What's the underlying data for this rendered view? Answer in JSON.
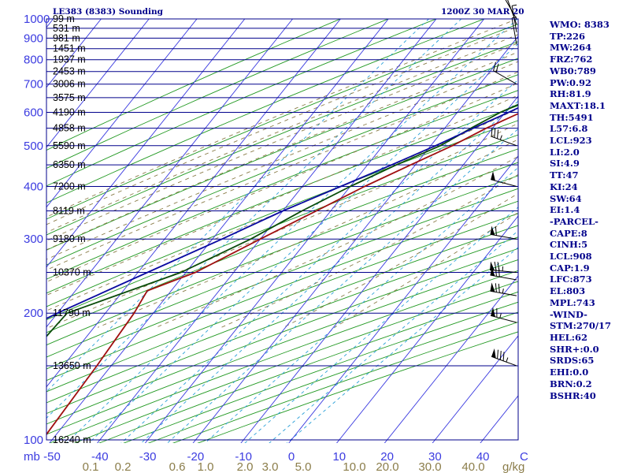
{
  "header": {
    "title": "LE383 (8383) Sounding",
    "time": "1200Z 30 MAR 20"
  },
  "indices": [
    "WMO: 8383",
    "TP:226",
    "MW:264",
    "FRZ:762",
    "WB0:789",
    "PW:0.92",
    "RH:81.9",
    "MAXT:18.1",
    "TH:5491",
    "L57:6.8",
    "LCL:923",
    "LI:2.0",
    "SI:4.9",
    "TT:47",
    "KI:24",
    "SW:64",
    "EI:1.4",
    "-PARCEL-",
    "CAPE:8",
    "CINH:5",
    "LCL:908",
    "CAP:1.9",
    "LFC:873",
    "EL:803",
    "MPL:743",
    "-WIND-",
    "STM:270/17",
    "HEL:62",
    "SHR+:0.0",
    "SRDS:65",
    "EHI:0.0",
    "BRN:0.2",
    "BSHR:40"
  ],
  "colors": {
    "isobar": "#00008b",
    "isotherm": "#3b3be0",
    "dry_adiabat": "#229922",
    "moist_adiabat": "#8b7d4a",
    "mixing_ratio": "#2aa0d8",
    "temperature": "#a01010",
    "dewpoint": "#0a4d0a",
    "parcel": "#0a0aa0",
    "mr_label": "#8b7d4a"
  },
  "chart_data": {
    "type": "line",
    "title": "LE383 (8383) Sounding",
    "pressure_axis_label": "mb",
    "pressure_ticks": [
      100,
      200,
      300,
      400,
      500,
      600,
      700,
      800,
      900,
      1000
    ],
    "temperature_axis_label": "C",
    "temperature_ticks": [
      -50,
      -40,
      -30,
      -20,
      -10,
      0,
      10,
      20,
      30,
      40
    ],
    "mixing_ratio_unit": "g/kg",
    "mixing_ratio_labels": [
      "0.1",
      "0.2",
      "0.6",
      "1.0",
      "2.0",
      "3.0",
      "5.0",
      "10.0",
      "20.0",
      "30.0",
      "40.0"
    ],
    "height_labels": [
      {
        "p": 100,
        "label": "16240 m"
      },
      {
        "p": 150,
        "label": "13650 m"
      },
      {
        "p": 200,
        "label": "11790 m"
      },
      {
        "p": 250,
        "label": "10370 m"
      },
      {
        "p": 300,
        "label": "9180 m"
      },
      {
        "p": 350,
        "label": "8119 m"
      },
      {
        "p": 400,
        "label": "7200 m"
      },
      {
        "p": 450,
        "label": "6350 m"
      },
      {
        "p": 500,
        "label": "5590 m"
      },
      {
        "p": 550,
        "label": "4858 m"
      },
      {
        "p": 600,
        "label": "4190 m"
      },
      {
        "p": 650,
        "label": "3575 m"
      },
      {
        "p": 700,
        "label": "3006 m"
      },
      {
        "p": 750,
        "label": "2453 m"
      },
      {
        "p": 800,
        "label": "1937 m"
      },
      {
        "p": 850,
        "label": "1451 m"
      },
      {
        "p": 900,
        "label": "981 m"
      },
      {
        "p": 950,
        "label": "531 m"
      },
      {
        "p": 1000,
        "label": "99 m"
      }
    ],
    "series": [
      {
        "key": "temperature",
        "points": [
          [
            1010,
            18.1
          ],
          [
            1000,
            15
          ],
          [
            975,
            12.6
          ],
          [
            950,
            11
          ],
          [
            900,
            9
          ],
          [
            850,
            7
          ],
          [
            800,
            5.8
          ],
          [
            750,
            3.6
          ],
          [
            700,
            1.3
          ],
          [
            650,
            -2.5
          ],
          [
            600,
            -6.7
          ],
          [
            550,
            -11.3
          ],
          [
            500,
            -15.5
          ],
          [
            450,
            -21
          ],
          [
            400,
            -27
          ],
          [
            350,
            -33
          ],
          [
            300,
            -40
          ],
          [
            250,
            -48
          ],
          [
            226,
            -55
          ],
          [
            200,
            -54
          ],
          [
            150,
            -53
          ],
          [
            100,
            -52
          ]
        ]
      },
      {
        "key": "dewpoint",
        "points": [
          [
            1010,
            10.2
          ],
          [
            1000,
            7
          ],
          [
            975,
            8.3
          ],
          [
            950,
            6.5
          ],
          [
            900,
            3.8
          ],
          [
            850,
            -2.2
          ],
          [
            800,
            -1.6
          ],
          [
            750,
            -1.8
          ],
          [
            700,
            -3.7
          ],
          [
            650,
            -6.5
          ],
          [
            600,
            -11
          ],
          [
            550,
            -14.5
          ],
          [
            500,
            -18
          ],
          [
            450,
            -24
          ],
          [
            400,
            -30
          ],
          [
            350,
            -36
          ],
          [
            300,
            -42
          ],
          [
            250,
            -51
          ],
          [
            200,
            -68
          ],
          [
            150,
            -69
          ],
          [
            100,
            -68
          ]
        ]
      },
      {
        "key": "parcel",
        "points": [
          [
            1000,
            15.5
          ],
          [
            975,
            12.6
          ],
          [
            950,
            10.8
          ],
          [
            900,
            9.2
          ],
          [
            850,
            6.6
          ],
          [
            800,
            4.4
          ],
          [
            750,
            1.8
          ],
          [
            700,
            -1.3
          ],
          [
            650,
            -5.2
          ],
          [
            600,
            -9.3
          ],
          [
            550,
            -14
          ],
          [
            500,
            -19
          ],
          [
            450,
            -25
          ],
          [
            400,
            -32
          ],
          [
            350,
            -40
          ],
          [
            300,
            -48
          ],
          [
            250,
            -58
          ],
          [
            200,
            -70
          ],
          [
            150,
            -84
          ],
          [
            110,
            -96
          ]
        ]
      }
    ],
    "wind_barbs": [
      {
        "p": 150,
        "dir": 290,
        "speed": 85
      },
      {
        "p": 190,
        "dir": 285,
        "speed": 65
      },
      {
        "p": 220,
        "dir": 280,
        "speed": 75
      },
      {
        "p": 240,
        "dir": 280,
        "speed": 70
      },
      {
        "p": 250,
        "dir": 275,
        "speed": 75
      },
      {
        "p": 300,
        "dir": 280,
        "speed": 60
      },
      {
        "p": 400,
        "dir": 285,
        "speed": 50
      },
      {
        "p": 500,
        "dir": 290,
        "speed": 35
      },
      {
        "p": 700,
        "dir": 300,
        "speed": 20
      },
      {
        "p": 870,
        "dir": 350,
        "speed": 5
      },
      {
        "p": 930,
        "dir": 350,
        "speed": 5
      },
      {
        "p": 970,
        "dir": 340,
        "speed": 10
      },
      {
        "p": 1000,
        "dir": 330,
        "speed": 5
      }
    ]
  }
}
